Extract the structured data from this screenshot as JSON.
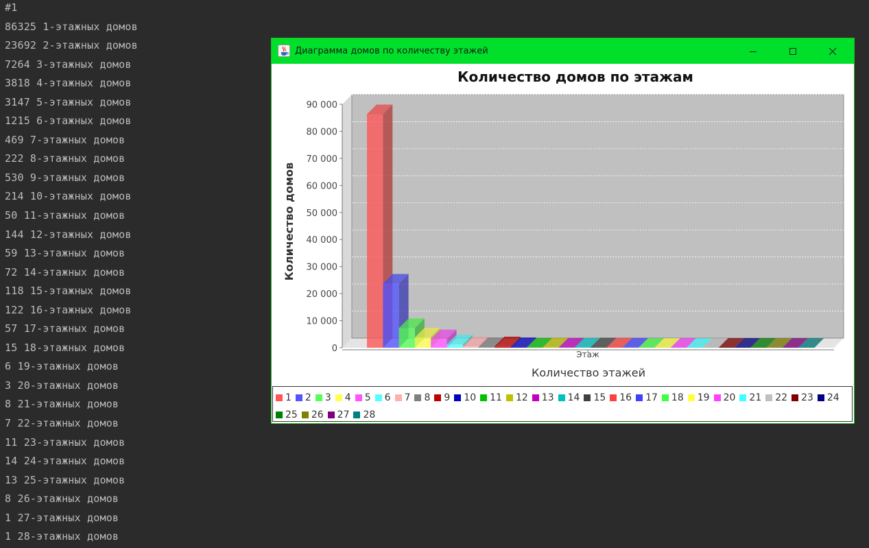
{
  "console": {
    "lines": [
      "#1",
      "86325 1-этажных домов",
      "23692 2-этажных домов",
      "7264 3-этажных домов",
      "3818 4-этажных домов",
      "3147 5-этажных домов",
      "1215 6-этажных домов",
      "469 7-этажных домов",
      "222 8-этажных домов",
      "530 9-этажных домов",
      "214 10-этажных домов",
      "50 11-этажных домов",
      "144 12-этажных домов",
      "59 13-этажных домов",
      "72 14-этажных домов",
      "118 15-этажных домов",
      "122 16-этажных домов",
      "57 17-этажных домов",
      "15 18-этажных домов",
      "6 19-этажных домов",
      "3 20-этажных домов",
      "8 21-этажных домов",
      "7 22-этажных домов",
      "11 23-этажных домов",
      "14 24-этажных домов",
      "13 25-этажных домов",
      "8 26-этажных домов",
      "1 27-этажных домов",
      "1 28-этажных домов"
    ]
  },
  "window": {
    "title": "Диаграмма домов по количеству этажей",
    "icon": "java-icon",
    "title_bar_color": "#00e02a"
  },
  "chart_data": {
    "type": "bar",
    "title": "Количество домов по этажам",
    "xlabel": "Количество этажей",
    "ylabel": "Количество домов",
    "categories": [
      "Этаж"
    ],
    "ylim": [
      0,
      90000
    ],
    "yticks": [
      0,
      10000,
      20000,
      30000,
      40000,
      50000,
      60000,
      70000,
      80000,
      90000
    ],
    "ytick_labels": [
      "0",
      "10 000",
      "20 000",
      "30 000",
      "40 000",
      "50 000",
      "60 000",
      "70 000",
      "80 000",
      "90 000"
    ],
    "grid": true,
    "legend_position": "bottom",
    "plot_background": "#c0c0c0",
    "series": [
      {
        "name": "1",
        "values": [
          86325
        ],
        "color": "#ff5555"
      },
      {
        "name": "2",
        "values": [
          23692
        ],
        "color": "#5555ff"
      },
      {
        "name": "3",
        "values": [
          7264
        ],
        "color": "#55ff55"
      },
      {
        "name": "4",
        "values": [
          3818
        ],
        "color": "#ffff55"
      },
      {
        "name": "5",
        "values": [
          3147
        ],
        "color": "#ff55ff"
      },
      {
        "name": "6",
        "values": [
          1215
        ],
        "color": "#55ffff"
      },
      {
        "name": "7",
        "values": [
          469
        ],
        "color": "#ffafaf"
      },
      {
        "name": "8",
        "values": [
          222
        ],
        "color": "#808080"
      },
      {
        "name": "9",
        "values": [
          530
        ],
        "color": "#c00000"
      },
      {
        "name": "10",
        "values": [
          214
        ],
        "color": "#0000c0"
      },
      {
        "name": "11",
        "values": [
          50
        ],
        "color": "#00c000"
      },
      {
        "name": "12",
        "values": [
          144
        ],
        "color": "#c0c000"
      },
      {
        "name": "13",
        "values": [
          59
        ],
        "color": "#c000c0"
      },
      {
        "name": "14",
        "values": [
          72
        ],
        "color": "#00c0c0"
      },
      {
        "name": "15",
        "values": [
          118
        ],
        "color": "#404040"
      },
      {
        "name": "16",
        "values": [
          122
        ],
        "color": "#ff4040"
      },
      {
        "name": "17",
        "values": [
          57
        ],
        "color": "#4040ff"
      },
      {
        "name": "18",
        "values": [
          15
        ],
        "color": "#40ff40"
      },
      {
        "name": "19",
        "values": [
          6
        ],
        "color": "#ffff40"
      },
      {
        "name": "20",
        "values": [
          3
        ],
        "color": "#ff40ff"
      },
      {
        "name": "21",
        "values": [
          8
        ],
        "color": "#40ffff"
      },
      {
        "name": "22",
        "values": [
          7
        ],
        "color": "#c0c0c0"
      },
      {
        "name": "23",
        "values": [
          11
        ],
        "color": "#800000"
      },
      {
        "name": "24",
        "values": [
          14
        ],
        "color": "#000080"
      },
      {
        "name": "25",
        "values": [
          13
        ],
        "color": "#008000"
      },
      {
        "name": "26",
        "values": [
          8
        ],
        "color": "#808000"
      },
      {
        "name": "27",
        "values": [
          1
        ],
        "color": "#800080"
      },
      {
        "name": "28",
        "values": [
          1
        ],
        "color": "#008080"
      }
    ]
  }
}
